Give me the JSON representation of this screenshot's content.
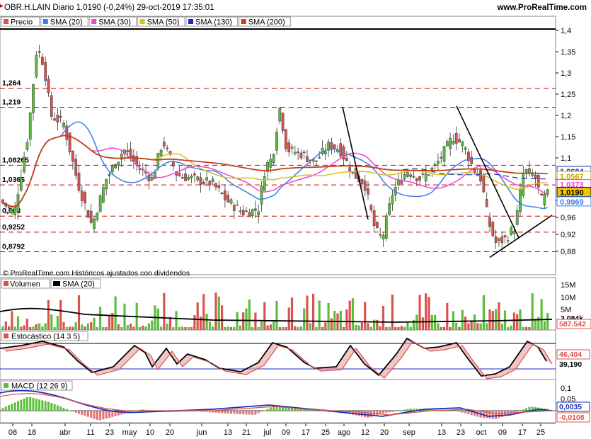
{
  "header": {
    "title": "OBR.H.LAIN Diario 1,0190 (-0,24%) 29-oct-2019 17:35:01",
    "site": "www.ProRealTime.com"
  },
  "legend_main": [
    {
      "label": "Precio",
      "color": "#d9534f"
    },
    {
      "label": "SMA (20)",
      "color": "#3a7fe8"
    },
    {
      "label": "SMA (30)",
      "color": "#ee44cc"
    },
    {
      "label": "SMA (50)",
      "color": "#d4c21a"
    },
    {
      "label": "SMA (130)",
      "color": "#1a2fb8"
    },
    {
      "label": "SMA (200)",
      "color": "#c4401a"
    }
  ],
  "footnote": "© ProRealTime.com  Históricos ajustados con dividendos",
  "panels": {
    "volume": {
      "title": "Volumen",
      "sma_label": "SMA (20)",
      "ticks": [
        "15M",
        "10M",
        "5M"
      ],
      "badges": [
        "3.084k",
        "587.542"
      ]
    },
    "stochastic": {
      "title": "Estocástico (14 3 5)",
      "badges": [
        "46,404",
        "39,190"
      ]
    },
    "macd": {
      "title": "MACD (12 26 9)",
      "ticks": [
        "0,1",
        "0,05",
        "0"
      ],
      "badges": [
        "0,0035",
        "-0,0108"
      ]
    }
  },
  "chart_data": {
    "type": "candlestick",
    "y_ticks": [
      "1,4",
      "1,35",
      "1,3",
      "1,25",
      "1,2",
      "1,15",
      "1,1",
      "1,05",
      "1",
      "0,96",
      "0,92",
      "0,88"
    ],
    "y_range": [
      0.835,
      1.405
    ],
    "horizontal_levels": [
      {
        "label": "1,264",
        "value": 1.264
      },
      {
        "label": "1,219",
        "value": 1.219
      },
      {
        "label": "1,08265",
        "value": 1.0827
      },
      {
        "label": "1,0365",
        "value": 1.0365
      },
      {
        "label": "0,963",
        "value": 0.963
      },
      {
        "label": "0,9252",
        "value": 0.9252
      },
      {
        "label": "0,8792",
        "value": 0.8792
      }
    ],
    "price_badges": [
      {
        "label": "1,0684",
        "value": 1.0684,
        "color": "#1a2fb8"
      },
      {
        "label": "1,0567",
        "value": 1.0567,
        "color": "#c9a800"
      },
      {
        "label": "1,0373",
        "value": 1.0373,
        "color": "#ee44cc"
      },
      {
        "label": "1,0190",
        "value": 1.019,
        "color": "#000000"
      },
      {
        "label": "0,9969",
        "value": 0.9969,
        "color": "#3a7fe8"
      }
    ],
    "x_labels": [
      "08",
      "18",
      "abr",
      "11",
      "23",
      "may",
      "10",
      "20",
      "jun",
      "13",
      "21",
      "jul",
      "09",
      "17",
      "25",
      "ago",
      "12",
      "20",
      "sep",
      "13",
      "23",
      "oct",
      "09",
      "17",
      "25"
    ],
    "last_price": 1.019,
    "change_pct": -0.24
  }
}
